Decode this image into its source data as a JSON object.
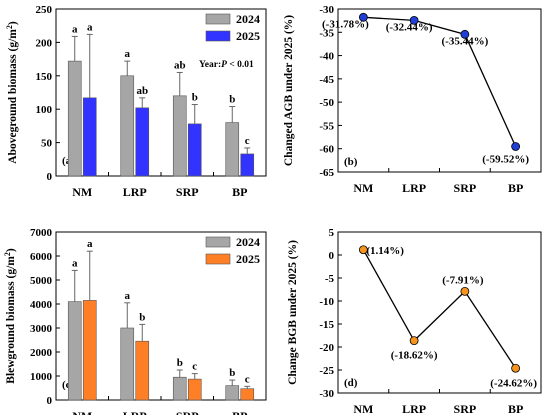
{
  "figure": {
    "fill_colors": {
      "gray": "#a6a6a6",
      "blue": "#3333ff",
      "orange": "#ff7f27",
      "point_blue": "#1f3fd6",
      "point_orange": "#f7941d"
    }
  },
  "chart_data": [
    {
      "panel": "(a)",
      "type": "bar",
      "ylabel": "Aboveground biomass (g/m²)",
      "ylabel_main": "Aboveground biomass (g/m",
      "ylabel_sup": "2",
      "ylabel_end": ")",
      "categories": [
        "NM",
        "LRP",
        "SRP",
        "BP"
      ],
      "ylim": [
        0,
        250
      ],
      "yticks": [
        0,
        50,
        100,
        150,
        200,
        250
      ],
      "series": [
        {
          "name": "2024",
          "color": "#a6a6a6",
          "values": [
            172,
            150,
            120,
            80
          ],
          "errors": [
            37,
            22,
            35,
            24
          ],
          "letters": [
            "a",
            "a",
            "ab",
            "b"
          ]
        },
        {
          "name": "2025",
          "color": "#3333ff",
          "values": [
            117,
            102,
            78,
            33
          ],
          "errors": [
            95,
            15,
            29,
            9
          ],
          "letters": [
            "a",
            "ab",
            "b",
            "c"
          ]
        }
      ],
      "annotation_prefix": "Year:",
      "annotation_p": "P",
      "annotation_rest": " < 0.01",
      "legend_position": "top-right"
    },
    {
      "panel": "(b)",
      "type": "line",
      "ylabel": "Changed AGB under 2025 (%)",
      "categories": [
        "NM",
        "LRP",
        "SRP",
        "BP"
      ],
      "values": [
        -31.78,
        -32.44,
        -35.44,
        -59.52
      ],
      "point_labels": [
        "(-31.78%)",
        "(-32.44%)",
        "(-35.44%)",
        "(-59.52%)"
      ],
      "ylim": [
        -65,
        -30
      ],
      "yticks": [
        -65,
        -60,
        -55,
        -50,
        -45,
        -40,
        -35,
        -30
      ],
      "marker_color": "#1f3fd6"
    },
    {
      "panel": "(c)",
      "type": "bar",
      "ylabel": "Blewground biomass (g/m²)",
      "ylabel_main": "Blewground biomass (g/m",
      "ylabel_sup": "2",
      "ylabel_end": ")",
      "categories": [
        "NM",
        "LRP",
        "SRP",
        "BP"
      ],
      "ylim": [
        0,
        7000
      ],
      "yticks": [
        0,
        1000,
        2000,
        3000,
        4000,
        5000,
        6000,
        7000
      ],
      "series": [
        {
          "name": "2024",
          "color": "#a6a6a6",
          "values": [
            4100,
            3000,
            950,
            600
          ],
          "errors": [
            1300,
            1050,
            300,
            230
          ],
          "letters": [
            "a",
            "a",
            "b",
            "b"
          ]
        },
        {
          "name": "2025",
          "color": "#ff7f27",
          "values": [
            4150,
            2450,
            870,
            470
          ],
          "errors": [
            2050,
            700,
            230,
            100
          ],
          "letters": [
            "a",
            "b",
            "c",
            "c"
          ]
        }
      ],
      "legend_position": "top-right"
    },
    {
      "panel": "(d)",
      "type": "line",
      "ylabel": "Change BGB under 2025 (%)",
      "categories": [
        "NM",
        "LRP",
        "SRP",
        "BP"
      ],
      "values": [
        1.14,
        -18.62,
        -7.91,
        -24.62
      ],
      "point_labels": [
        "(1.14%)",
        "(-18.62%)",
        "(-7.91%)",
        "(-24.62%)"
      ],
      "ylim": [
        -30,
        5
      ],
      "yticks": [
        -30,
        -25,
        -20,
        -15,
        -10,
        -5,
        0,
        5
      ],
      "marker_color": "#f7941d"
    }
  ]
}
